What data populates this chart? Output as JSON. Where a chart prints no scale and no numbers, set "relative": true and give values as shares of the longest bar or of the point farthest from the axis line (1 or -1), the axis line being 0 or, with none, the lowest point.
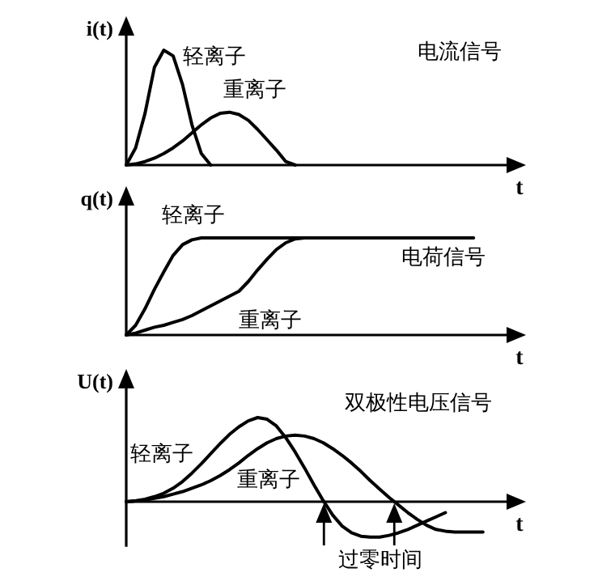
{
  "chart_data": [
    {
      "type": "line",
      "relative": true,
      "ylabel": "i(t)",
      "xlabel": "t",
      "legend": false,
      "marker": "none",
      "line_style": "solid",
      "annotations": [
        "电流信号"
      ],
      "categories": [
        null,
        null,
        null,
        null,
        null,
        null,
        null,
        null,
        null,
        null,
        null,
        null,
        null,
        null,
        null,
        null,
        null,
        null,
        null,
        null,
        null,
        null,
        null,
        null,
        null,
        null,
        null,
        null,
        null,
        null,
        null,
        null,
        null,
        null,
        null,
        null,
        null,
        null,
        null,
        null,
        null
      ],
      "series": [
        {
          "name": "轻离子",
          "color": "#000000",
          "values": [
            0,
            0.15,
            0.45,
            0.85,
            1.0,
            0.95,
            0.7,
            0.35,
            0.1,
            0,
            null,
            null,
            null,
            null,
            null,
            null,
            null,
            null,
            null,
            null,
            null,
            null,
            null,
            null,
            null,
            null,
            null,
            null,
            null,
            null,
            null,
            null,
            null,
            null,
            null,
            null,
            null,
            null,
            null,
            null,
            null
          ]
        },
        {
          "name": "重离子",
          "color": "#000000",
          "values": [
            0,
            0.01,
            0.03,
            0.06,
            0.1,
            0.15,
            0.21,
            0.28,
            0.35,
            0.41,
            0.45,
            0.46,
            0.44,
            0.39,
            0.31,
            0.22,
            0.13,
            0.03,
            0,
            null,
            null,
            null,
            null,
            null,
            null,
            null,
            null,
            null,
            null,
            null,
            null,
            null,
            null,
            null,
            null,
            null,
            null,
            null,
            null,
            null,
            null
          ]
        }
      ]
    },
    {
      "type": "line",
      "relative": true,
      "ylabel": "q(t)",
      "xlabel": "t",
      "legend": false,
      "marker": "none",
      "line_style": "solid",
      "annotations": [
        "电荷信号"
      ],
      "categories": [
        null,
        null,
        null,
        null,
        null,
        null,
        null,
        null,
        null,
        null,
        null,
        null,
        null,
        null,
        null,
        null,
        null,
        null,
        null,
        null,
        null,
        null,
        null,
        null,
        null,
        null,
        null,
        null,
        null,
        null,
        null,
        null,
        null,
        null,
        null,
        null,
        null,
        null,
        null,
        null,
        null
      ],
      "series": [
        {
          "name": "轻离子",
          "color": "#000000",
          "values": [
            0,
            0.1,
            0.27,
            0.47,
            0.65,
            0.82,
            0.93,
            0.98,
            1,
            1,
            1,
            1,
            1,
            1,
            1,
            1,
            1,
            1,
            1,
            1,
            1,
            1,
            1,
            1,
            1,
            1,
            1,
            1,
            1,
            1,
            1,
            1,
            1,
            1,
            1,
            1,
            1,
            1,
            null,
            null,
            null
          ]
        },
        {
          "name": "重离子",
          "color": "#000000",
          "values": [
            0,
            0.02,
            0.05,
            0.08,
            0.1,
            0.13,
            0.16,
            0.2,
            0.25,
            0.3,
            0.35,
            0.4,
            0.45,
            0.55,
            0.67,
            0.78,
            0.88,
            0.95,
            0.99,
            1,
            null,
            null,
            null,
            null,
            null,
            null,
            null,
            null,
            null,
            null,
            null,
            null,
            null,
            null,
            null,
            null,
            null,
            null,
            null,
            null,
            null
          ]
        }
      ]
    },
    {
      "type": "line",
      "relative": true,
      "ylabel": "U(t)",
      "xlabel": "t",
      "legend": false,
      "marker": "none",
      "line_style": "solid",
      "annotations": [
        "双极性电压信号",
        "过零时间"
      ],
      "categories": [
        null,
        null,
        null,
        null,
        null,
        null,
        null,
        null,
        null,
        null,
        null,
        null,
        null,
        null,
        null,
        null,
        null,
        null,
        null,
        null,
        null,
        null,
        null,
        null,
        null,
        null,
        null,
        null,
        null,
        null,
        null,
        null,
        null,
        null,
        null,
        null,
        null,
        null,
        null,
        null,
        null
      ],
      "series": [
        {
          "name": "轻离子",
          "color": "#000000",
          "values": [
            0,
            0.01,
            0.03,
            0.06,
            0.1,
            0.16,
            0.24,
            0.34,
            0.45,
            0.57,
            0.69,
            0.8,
            0.89,
            0.96,
            1,
            0.98,
            0.9,
            0.76,
            0.59,
            0.4,
            0.2,
            0.01,
            -0.16,
            -0.29,
            -0.37,
            -0.41,
            -0.42,
            -0.42,
            -0.4,
            -0.37,
            -0.33,
            -0.28,
            -0.23,
            -0.18,
            -0.13,
            null,
            null,
            null,
            null,
            null,
            null
          ]
        },
        {
          "name": "重离子",
          "color": "#000000",
          "values": [
            0,
            0.01,
            0.02,
            0.04,
            0.06,
            0.09,
            0.12,
            0.16,
            0.2,
            0.25,
            0.31,
            0.38,
            0.46,
            0.55,
            0.63,
            0.7,
            0.75,
            0.78,
            0.79,
            0.78,
            0.75,
            0.7,
            0.63,
            0.55,
            0.46,
            0.36,
            0.25,
            0.15,
            0.05,
            -0.04,
            -0.13,
            -0.21,
            -0.28,
            -0.33,
            -0.35,
            -0.36,
            -0.36,
            -0.36,
            -0.36,
            null,
            null
          ]
        }
      ]
    }
  ]
}
